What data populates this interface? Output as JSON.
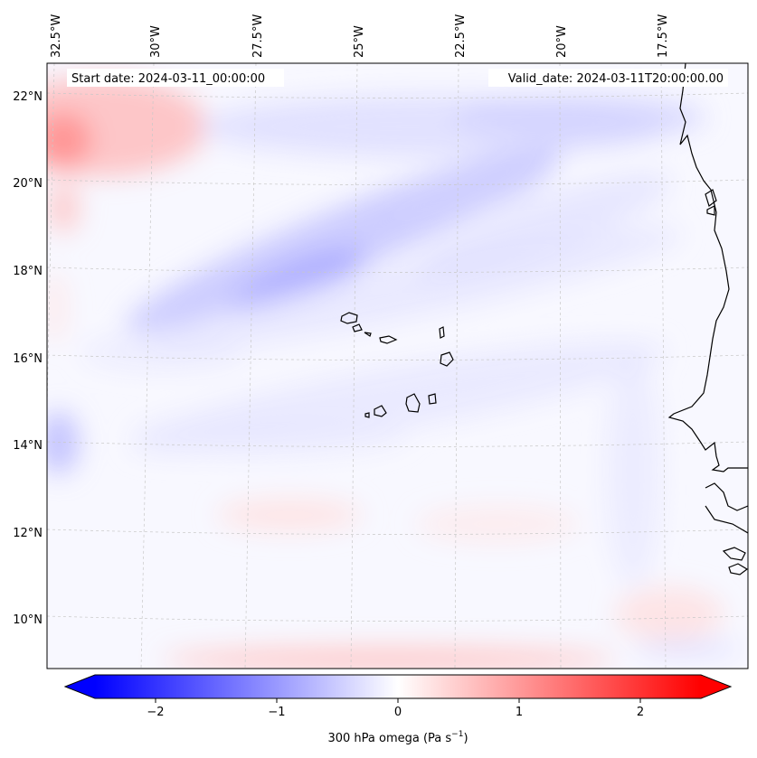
{
  "header": {
    "start_date": "Start date: 2024-03-11_00:00:00",
    "valid_date": "Valid_date: 2024-03-11T20:00:00.00"
  },
  "longitude_labels": [
    "32.5°W",
    "30°W",
    "27.5°W",
    "25°W",
    "22.5°W",
    "20°W",
    "17.5°W"
  ],
  "latitude_labels": [
    "22°N",
    "20°N",
    "18°N",
    "16°N",
    "14°N",
    "12°N",
    "10°N"
  ],
  "colorbar": {
    "title": "300 hPa omega (Pa s",
    "title_exponent": "−1",
    "title_close": ")",
    "ticks": [
      {
        "value": -2,
        "label": "−2"
      },
      {
        "value": -1,
        "label": "−1"
      },
      {
        "value": 0,
        "label": "0"
      },
      {
        "value": 1,
        "label": "1"
      },
      {
        "value": 2,
        "label": "2"
      }
    ],
    "range": [
      -2.5,
      2.5
    ],
    "colors": {
      "negative": "#0000ff",
      "zero": "#ffffff",
      "positive": "#ff0000"
    }
  }
}
